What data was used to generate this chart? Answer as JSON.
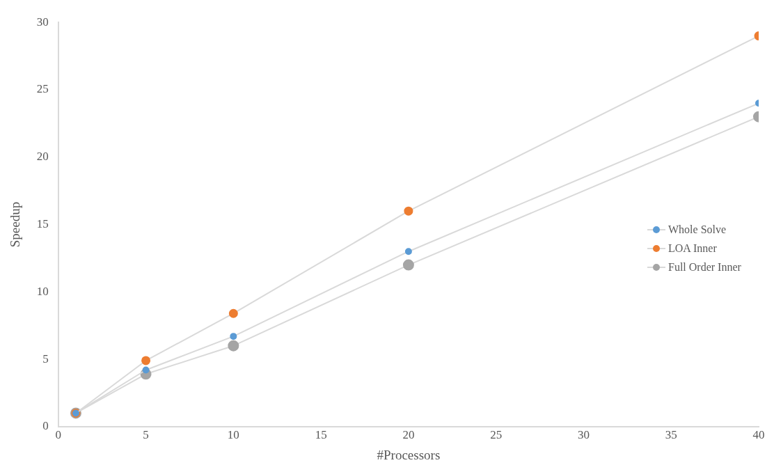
{
  "chart_data": {
    "type": "line",
    "xlabel": "#Processors",
    "ylabel": "Speedup",
    "x": [
      1,
      5,
      10,
      20,
      40
    ],
    "series": [
      {
        "name": "Whole Solve",
        "color": "#5b9bd5",
        "values": [
          1,
          4.2,
          6.7,
          13,
          24
        ]
      },
      {
        "name": "LOA Inner",
        "color": "#ed7d31",
        "values": [
          1,
          4.9,
          8.4,
          16,
          29
        ]
      },
      {
        "name": "Full Order Inner",
        "color": "#a5a5a5",
        "values": [
          1,
          3.9,
          6,
          12,
          23
        ]
      }
    ],
    "xlim": [
      0,
      40
    ],
    "xticks": [
      0,
      5,
      10,
      15,
      20,
      25,
      30,
      35,
      40
    ],
    "ylim": [
      0,
      30
    ],
    "yticks": [
      0,
      5,
      10,
      15,
      20,
      25,
      30
    ],
    "grid": false,
    "legend": "right",
    "marker": "circle",
    "line_style": "solid"
  }
}
